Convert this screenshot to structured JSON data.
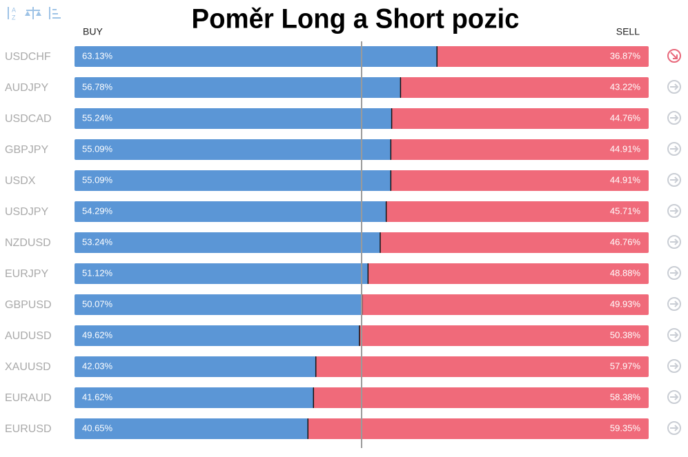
{
  "chart_data": {
    "type": "stacked-bar-horizontal",
    "title": "Poměr Long a Short pozic",
    "categories": [
      "USDCHF",
      "AUDJPY",
      "USDCAD",
      "GBPJPY",
      "USDX",
      "USDJPY",
      "NZDUSD",
      "EURJPY",
      "GBPUSD",
      "AUDUSD",
      "XAUUSD",
      "EURAUD",
      "EURUSD"
    ],
    "series": [
      {
        "name": "BUY",
        "color": "#5b96d6",
        "values": [
          63.13,
          56.78,
          55.24,
          55.09,
          55.09,
          54.29,
          53.24,
          51.12,
          50.07,
          49.62,
          42.03,
          41.62,
          40.65
        ],
        "value_labels": [
          "63.13%",
          "56.78%",
          "55.24%",
          "55.09%",
          "55.09%",
          "54.29%",
          "53.24%",
          "51.12%",
          "50.07%",
          "49.62%",
          "42.03%",
          "41.62%",
          "40.65%"
        ]
      },
      {
        "name": "SELL",
        "color": "#f06a7a",
        "values": [
          36.87,
          43.22,
          44.76,
          44.91,
          44.91,
          45.71,
          46.76,
          48.88,
          49.93,
          50.38,
          57.97,
          58.38,
          59.35
        ],
        "value_labels": [
          "36.87%",
          "43.22%",
          "44.76%",
          "44.91%",
          "44.91%",
          "45.71%",
          "46.76%",
          "48.88%",
          "49.93%",
          "50.38%",
          "57.97%",
          "58.38%",
          "59.35%"
        ]
      }
    ],
    "xlim": [
      0,
      100
    ],
    "reference_line": 50
  }
}
